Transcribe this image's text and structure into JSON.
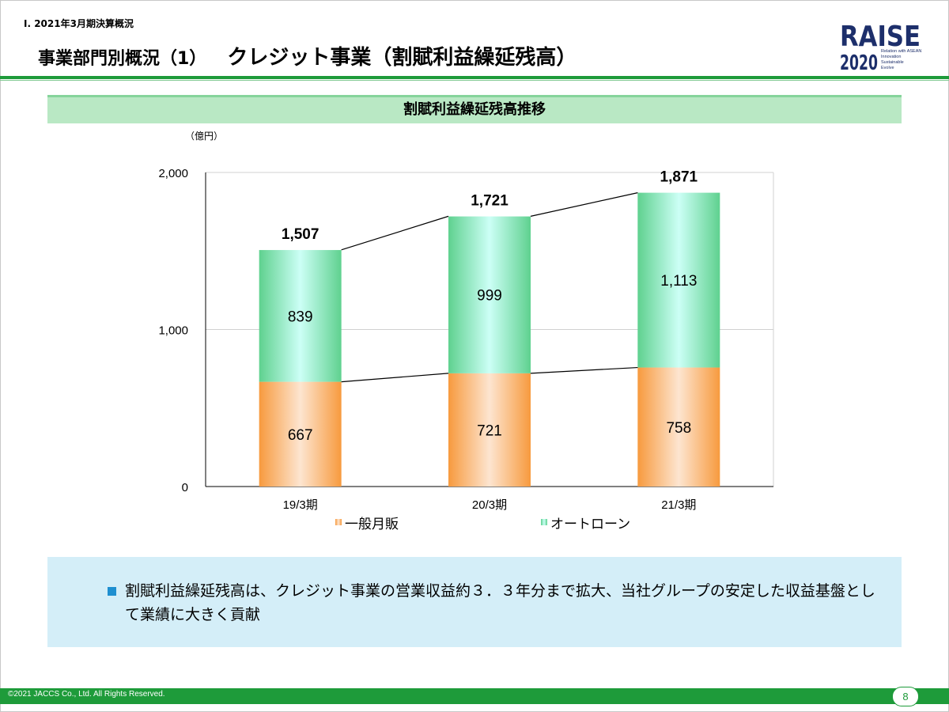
{
  "header": {
    "section_label": "Ⅰ. 2021年3月期決算概況",
    "title_sub": "事業部門別概況（1）",
    "title_main": "クレジット事業（割賦利益繰延残高）"
  },
  "logo": {
    "word": "RAISE",
    "year": "2020",
    "lines": [
      "Relation with ASEAN",
      "Innovation",
      "Sustainable",
      "Evolve"
    ],
    "colors": {
      "navy": "#1d2f6b",
      "light": "#dfe6f2"
    }
  },
  "chart_banner": {
    "title": "割賦利益繰延残高推移"
  },
  "chart_data": {
    "type": "bar",
    "stacked": true,
    "unit_label": "（億円）",
    "categories": [
      "19/3期",
      "20/3期",
      "21/3期"
    ],
    "series": [
      {
        "name": "一般月販",
        "values": [
          667,
          721,
          758
        ],
        "color": "#f6a053"
      },
      {
        "name": "オートローン",
        "values": [
          839,
          999,
          1113
        ],
        "color": "#8de3c4"
      }
    ],
    "totals": [
      1507,
      1721,
      1871
    ],
    "total_labels": [
      "1,507",
      "1,721",
      "1,871"
    ],
    "segment_labels": [
      [
        "667",
        "721",
        "758"
      ],
      [
        "839",
        "999",
        "1,113"
      ]
    ],
    "ylim": [
      0,
      2000
    ],
    "yticks": [
      0,
      1000,
      2000
    ],
    "ytick_labels": [
      "0",
      "1,000",
      "2,000"
    ],
    "grid": true,
    "legend_position": "bottom",
    "connector_lines": true
  },
  "note": {
    "text": "割賦利益繰延残高は、クレジット事業の営業収益約３．３年分まで拡大、当社グループの安定した収益基盤として業績に大きく貢献",
    "bullet_color": "#1e8fd0"
  },
  "footer": {
    "copyright": "©2021 JACCS Co., Ltd. All Rights Reserved.",
    "page_number": "8"
  },
  "colors": {
    "accent_green": "#1e9b3a",
    "banner_green": "#b9e8c4",
    "note_bg": "#d4eef8"
  }
}
